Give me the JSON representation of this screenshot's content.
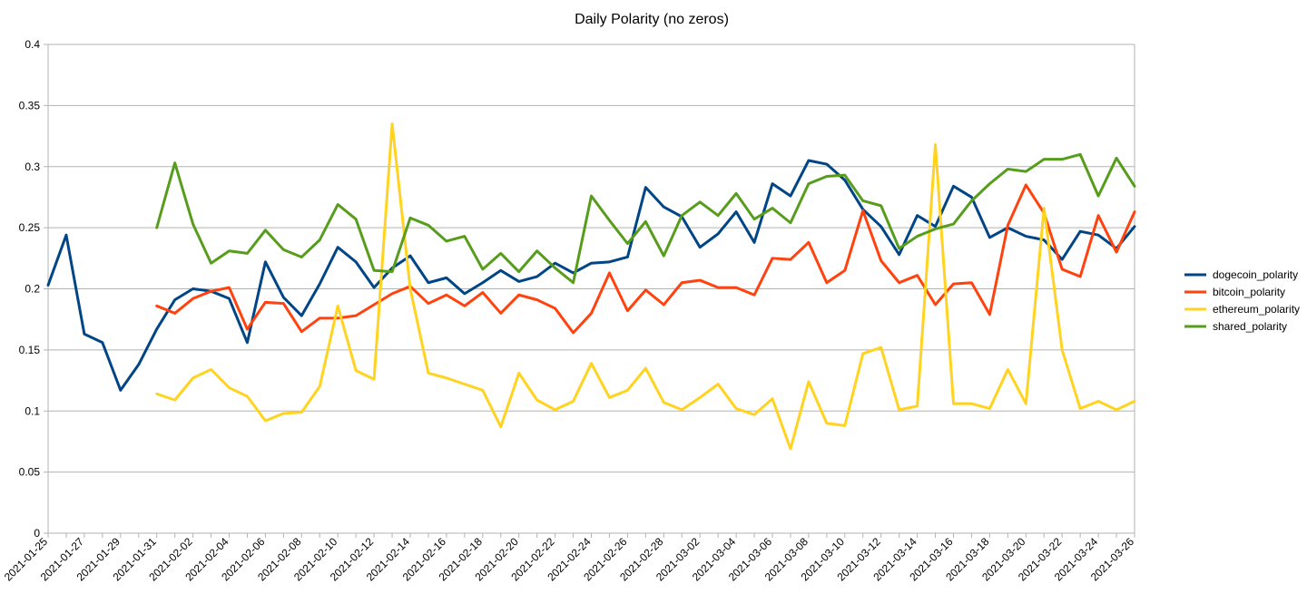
{
  "chart_data": {
    "type": "line",
    "title": "Daily Polarity (no zeros)",
    "xlabel": "",
    "ylabel": "",
    "ylim": [
      0,
      0.4
    ],
    "y_ticks": [
      "0",
      "0.05",
      "0.1",
      "0.15",
      "0.2",
      "0.25",
      "0.3",
      "0.35",
      "0.4"
    ],
    "x_start": "2021-01-25",
    "x_ticks": [
      "2021-01-25",
      "2021-01-27",
      "2021-01-29",
      "2021-01-31",
      "2021-02-02",
      "2021-02-04",
      "2021-02-06",
      "2021-02-08",
      "2021-02-10",
      "2021-02-12",
      "2021-02-14",
      "2021-02-16",
      "2021-02-18",
      "2021-02-20",
      "2021-02-22",
      "2021-02-24",
      "2021-02-26",
      "2021-02-28",
      "2021-03-02",
      "2021-03-04",
      "2021-03-06",
      "2021-03-08",
      "2021-03-10",
      "2021-03-12",
      "2021-03-14",
      "2021-03-16",
      "2021-03-18",
      "2021-03-20",
      "2021-03-22",
      "2021-03-24",
      "2021-03-26"
    ],
    "grid": true,
    "legend_position": "right",
    "series": [
      {
        "name": "dogecoin_polarity",
        "color": "#004586",
        "values": [
          0.203,
          0.244,
          0.163,
          0.156,
          0.117,
          0.138,
          0.167,
          0.191,
          0.2,
          0.198,
          0.192,
          0.156,
          0.222,
          0.193,
          0.178,
          0.204,
          0.234,
          0.222,
          0.201,
          0.217,
          0.227,
          0.205,
          0.209,
          0.196,
          0.205,
          0.215,
          0.206,
          0.21,
          0.221,
          0.213,
          0.221,
          0.222,
          0.226,
          0.283,
          0.267,
          0.259,
          0.234,
          0.245,
          0.263,
          0.238,
          0.286,
          0.276,
          0.305,
          0.302,
          0.289,
          0.265,
          0.251,
          0.228,
          0.26,
          0.251,
          0.284,
          0.275,
          0.242,
          0.25,
          0.243,
          0.24,
          0.224,
          0.247,
          0.244,
          0.233,
          0.251
        ]
      },
      {
        "name": "bitcoin_polarity",
        "color": "#ff420e",
        "values": [
          null,
          null,
          null,
          null,
          null,
          null,
          0.186,
          0.18,
          0.192,
          0.198,
          0.201,
          0.167,
          0.189,
          0.188,
          0.165,
          0.176,
          0.176,
          0.178,
          0.187,
          0.196,
          0.202,
          0.188,
          0.195,
          0.186,
          0.197,
          0.18,
          0.195,
          0.191,
          0.184,
          0.164,
          0.18,
          0.213,
          0.182,
          0.199,
          0.187,
          0.205,
          0.207,
          0.201,
          0.201,
          0.195,
          0.225,
          0.224,
          0.238,
          0.205,
          0.215,
          0.264,
          0.223,
          0.205,
          0.211,
          0.187,
          0.204,
          0.205,
          0.179,
          0.252,
          0.285,
          0.262,
          0.216,
          0.21,
          0.26,
          0.23,
          0.263
        ]
      },
      {
        "name": "ethereum_polarity",
        "color": "#ffd320",
        "values": [
          null,
          null,
          null,
          null,
          null,
          null,
          0.114,
          0.109,
          0.127,
          0.134,
          0.119,
          0.112,
          0.092,
          0.098,
          0.099,
          0.12,
          0.186,
          0.133,
          0.126,
          0.335,
          0.2,
          0.131,
          0.127,
          0.122,
          0.117,
          0.087,
          0.131,
          0.109,
          0.101,
          0.108,
          0.139,
          0.111,
          0.117,
          0.135,
          0.107,
          0.101,
          0.111,
          0.122,
          0.102,
          0.097,
          0.11,
          0.069,
          0.124,
          0.09,
          0.088,
          0.147,
          0.152,
          0.101,
          0.104,
          0.318,
          0.106,
          0.106,
          0.102,
          0.134,
          0.106,
          0.266,
          0.15,
          0.102,
          0.108,
          0.101,
          0.108
        ]
      },
      {
        "name": "shared_polarity",
        "color": "#579d1c",
        "values": [
          null,
          null,
          null,
          null,
          null,
          null,
          0.25,
          0.303,
          0.253,
          0.221,
          0.231,
          0.229,
          0.248,
          0.232,
          0.226,
          0.24,
          0.269,
          0.257,
          0.215,
          0.214,
          0.258,
          0.252,
          0.239,
          0.243,
          0.216,
          0.229,
          0.214,
          0.231,
          0.217,
          0.205,
          0.276,
          0.256,
          0.237,
          0.255,
          0.227,
          0.26,
          0.271,
          0.26,
          0.278,
          0.257,
          0.266,
          0.254,
          0.286,
          0.292,
          0.293,
          0.272,
          0.268,
          0.233,
          0.243,
          0.249,
          0.253,
          0.272,
          0.286,
          0.298,
          0.296,
          0.306,
          0.306,
          0.31,
          0.276,
          0.307,
          0.284
        ]
      }
    ]
  }
}
